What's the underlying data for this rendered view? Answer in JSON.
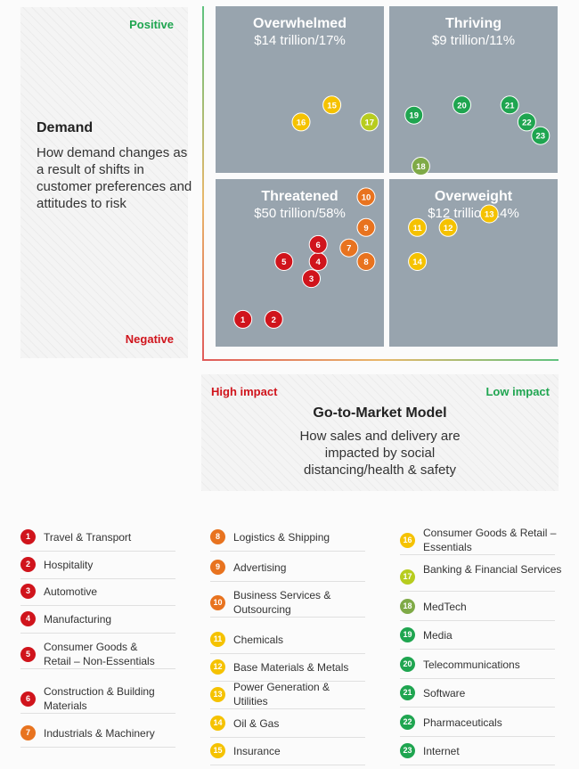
{
  "colors": {
    "red": "#d0141c",
    "orange": "#e8731f",
    "yellow": "#f5c200",
    "lime": "#b7cc1f",
    "olive_green": "#7faa47",
    "green": "#1fa550",
    "quadrant_fill": "#98a4ae"
  },
  "demand_axis": {
    "positive": "Positive",
    "negative": "Negative",
    "title": "Demand",
    "description": "How demand changes as a result of shifts in customer preferences and attitudes to risk"
  },
  "gtm_axis": {
    "high_impact": "High impact",
    "low_impact": "Low impact",
    "title": "Go-to-Market Model",
    "description": "How sales and delivery are impacted by social distancing/health & safety"
  },
  "chart_data": {
    "type": "scatter",
    "quadrants": [
      {
        "id": "overwhelmed",
        "title": "Overwhelmed",
        "value": "$14 trillion/17%",
        "position": "top-left"
      },
      {
        "id": "thriving",
        "title": "Thriving",
        "value": "$9 trillion/11%",
        "position": "top-right"
      },
      {
        "id": "threatened",
        "title": "Threatened",
        "value": "$50 trillion/58%",
        "position": "bottom-left"
      },
      {
        "id": "overweight",
        "title": "Overweight",
        "value": "$12 trillion/14%",
        "position": "bottom-right"
      }
    ],
    "x_axis": {
      "low": "High impact",
      "high": "Low impact",
      "range": [
        0,
        1
      ]
    },
    "y_axis": {
      "low": "Negative",
      "high": "Positive",
      "range": [
        0,
        1
      ]
    },
    "points": [
      {
        "id": 1,
        "x": 0.08,
        "y": 0.08,
        "color": "red"
      },
      {
        "id": 2,
        "x": 0.17,
        "y": 0.08,
        "color": "red"
      },
      {
        "id": 3,
        "x": 0.28,
        "y": 0.2,
        "color": "red"
      },
      {
        "id": 4,
        "x": 0.3,
        "y": 0.25,
        "color": "red"
      },
      {
        "id": 5,
        "x": 0.2,
        "y": 0.25,
        "color": "red"
      },
      {
        "id": 6,
        "x": 0.3,
        "y": 0.3,
        "color": "red"
      },
      {
        "id": 7,
        "x": 0.39,
        "y": 0.29,
        "color": "orange"
      },
      {
        "id": 8,
        "x": 0.44,
        "y": 0.25,
        "color": "orange"
      },
      {
        "id": 9,
        "x": 0.44,
        "y": 0.35,
        "color": "orange"
      },
      {
        "id": 10,
        "x": 0.44,
        "y": 0.44,
        "color": "orange"
      },
      {
        "id": 11,
        "x": 0.59,
        "y": 0.35,
        "color": "yellow"
      },
      {
        "id": 12,
        "x": 0.68,
        "y": 0.35,
        "color": "yellow"
      },
      {
        "id": 13,
        "x": 0.8,
        "y": 0.39,
        "color": "yellow"
      },
      {
        "id": 14,
        "x": 0.59,
        "y": 0.25,
        "color": "yellow"
      },
      {
        "id": 15,
        "x": 0.34,
        "y": 0.71,
        "color": "yellow"
      },
      {
        "id": 16,
        "x": 0.25,
        "y": 0.66,
        "color": "yellow"
      },
      {
        "id": 17,
        "x": 0.45,
        "y": 0.66,
        "color": "lime"
      },
      {
        "id": 18,
        "x": 0.6,
        "y": 0.53,
        "color": "olive_green"
      },
      {
        "id": 19,
        "x": 0.58,
        "y": 0.68,
        "color": "green"
      },
      {
        "id": 20,
        "x": 0.72,
        "y": 0.71,
        "color": "green"
      },
      {
        "id": 21,
        "x": 0.86,
        "y": 0.71,
        "color": "green"
      },
      {
        "id": 22,
        "x": 0.91,
        "y": 0.66,
        "color": "green"
      },
      {
        "id": 23,
        "x": 0.95,
        "y": 0.62,
        "color": "green"
      }
    ]
  },
  "legend": {
    "columns": [
      [
        {
          "num": "1",
          "label": "Travel & Transport",
          "color": "red"
        },
        {
          "num": "2",
          "label": "Hospitality",
          "color": "red"
        },
        {
          "num": "3",
          "label": "Automotive",
          "color": "red"
        },
        {
          "num": "4",
          "label": "Manufacturing",
          "color": "red"
        },
        {
          "num": "5",
          "label": "Consumer Goods & Retail – Non-Essentials",
          "color": "red"
        },
        {
          "num": "6",
          "label": "Construction & Building Materials",
          "color": "red"
        },
        {
          "num": "7",
          "label": "Industrials & Machinery",
          "color": "orange"
        }
      ],
      [
        {
          "num": "8",
          "label": "Logistics & Shipping",
          "color": "orange"
        },
        {
          "num": "9",
          "label": "Advertising",
          "color": "orange"
        },
        {
          "num": "10",
          "label": "Business Services & Outsourcing",
          "color": "orange"
        },
        {
          "num": "11",
          "label": "Chemicals",
          "color": "yellow"
        },
        {
          "num": "12",
          "label": "Base Materials & Metals",
          "color": "yellow"
        },
        {
          "num": "13",
          "label": "Power Generation & Utilities",
          "color": "yellow"
        },
        {
          "num": "14",
          "label": "Oil & Gas",
          "color": "yellow"
        },
        {
          "num": "15",
          "label": "Insurance",
          "color": "yellow"
        }
      ],
      [
        {
          "num": "16",
          "label": "Consumer Goods & Retail – Essentials",
          "color": "yellow"
        },
        {
          "num": "17",
          "label": "Banking & Financial Services",
          "color": "lime"
        },
        {
          "num": "18",
          "label": "MedTech",
          "color": "olive_green"
        },
        {
          "num": "19",
          "label": "Media",
          "color": "green"
        },
        {
          "num": "20",
          "label": "Telecommunications",
          "color": "green"
        },
        {
          "num": "21",
          "label": "Software",
          "color": "green"
        },
        {
          "num": "22",
          "label": "Pharmaceuticals",
          "color": "green"
        },
        {
          "num": "23",
          "label": "Internet",
          "color": "green"
        }
      ]
    ]
  }
}
